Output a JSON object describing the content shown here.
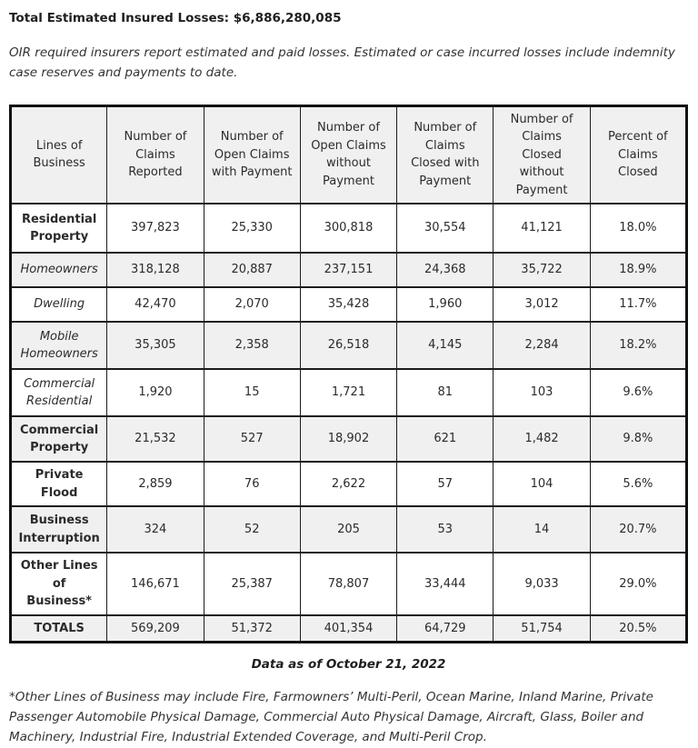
{
  "page": {
    "title": "Total Estimated Insured Losses: $6,886,280,085",
    "intro": "OIR required insurers report estimated and paid losses. Estimated or case incurred losses include indemnity case reserves and payments to date.",
    "data_as_of": "Data as of October 21, 2022",
    "footnote": "*Other Lines of Business may include Fire, Farmowners’ Multi-Peril, Ocean Marine, Inland Marine, Private Passenger Automobile Physical Damage, Commercial Auto Physical Damage, Aircraft, Glass, Boiler and Machinery, Industrial Fire, Industrial Extended Coverage, and Multi-Peril Crop."
  },
  "table": {
    "headers": [
      "Lines of Business",
      "Number of Claims Reported",
      "Number of Open Claims with Payment",
      "Number of Open Claims without Payment",
      "Number of Claims Closed with Payment",
      "Number of Claims Closed without Payment",
      "Percent of Claims Closed"
    ],
    "rows": [
      {
        "label": "Residential Property",
        "emphasis": "bold",
        "values": [
          "397,823",
          "25,330",
          "300,818",
          "30,554",
          "41,121",
          "18.0%"
        ]
      },
      {
        "label": "Homeowners",
        "emphasis": "italic",
        "values": [
          "318,128",
          "20,887",
          "237,151",
          "24,368",
          "35,722",
          "18.9%"
        ]
      },
      {
        "label": "Dwelling",
        "emphasis": "italic",
        "values": [
          "42,470",
          "2,070",
          "35,428",
          "1,960",
          "3,012",
          "11.7%"
        ]
      },
      {
        "label": "Mobile Homeowners",
        "emphasis": "italic",
        "values": [
          "35,305",
          "2,358",
          "26,518",
          "4,145",
          "2,284",
          "18.2%"
        ]
      },
      {
        "label": "Commercial Residential",
        "emphasis": "italic",
        "values": [
          "1,920",
          "15",
          "1,721",
          "81",
          "103",
          "9.6%"
        ]
      },
      {
        "label": "Commercial Property",
        "emphasis": "bold",
        "values": [
          "21,532",
          "527",
          "18,902",
          "621",
          "1,482",
          "9.8%"
        ]
      },
      {
        "label": "Private Flood",
        "emphasis": "bold",
        "values": [
          "2,859",
          "76",
          "2,622",
          "57",
          "104",
          "5.6%"
        ]
      },
      {
        "label": "Business Interruption",
        "emphasis": "bold",
        "values": [
          "324",
          "52",
          "205",
          "53",
          "14",
          "20.7%"
        ]
      },
      {
        "label": "Other Lines of Business*",
        "emphasis": "bold",
        "values": [
          "146,671",
          "25,387",
          "78,807",
          "33,444",
          "9,033",
          "29.0%"
        ]
      },
      {
        "label": "TOTALS",
        "emphasis": "bold",
        "values": [
          "569,209",
          "51,372",
          "401,354",
          "64,729",
          "51,754",
          "20.5%"
        ]
      }
    ]
  },
  "colors": {
    "stripe": "#f0f0f0",
    "header_bg": "#f0f0f0",
    "border": "#1c1c1c",
    "text": "#2b2b2b"
  }
}
